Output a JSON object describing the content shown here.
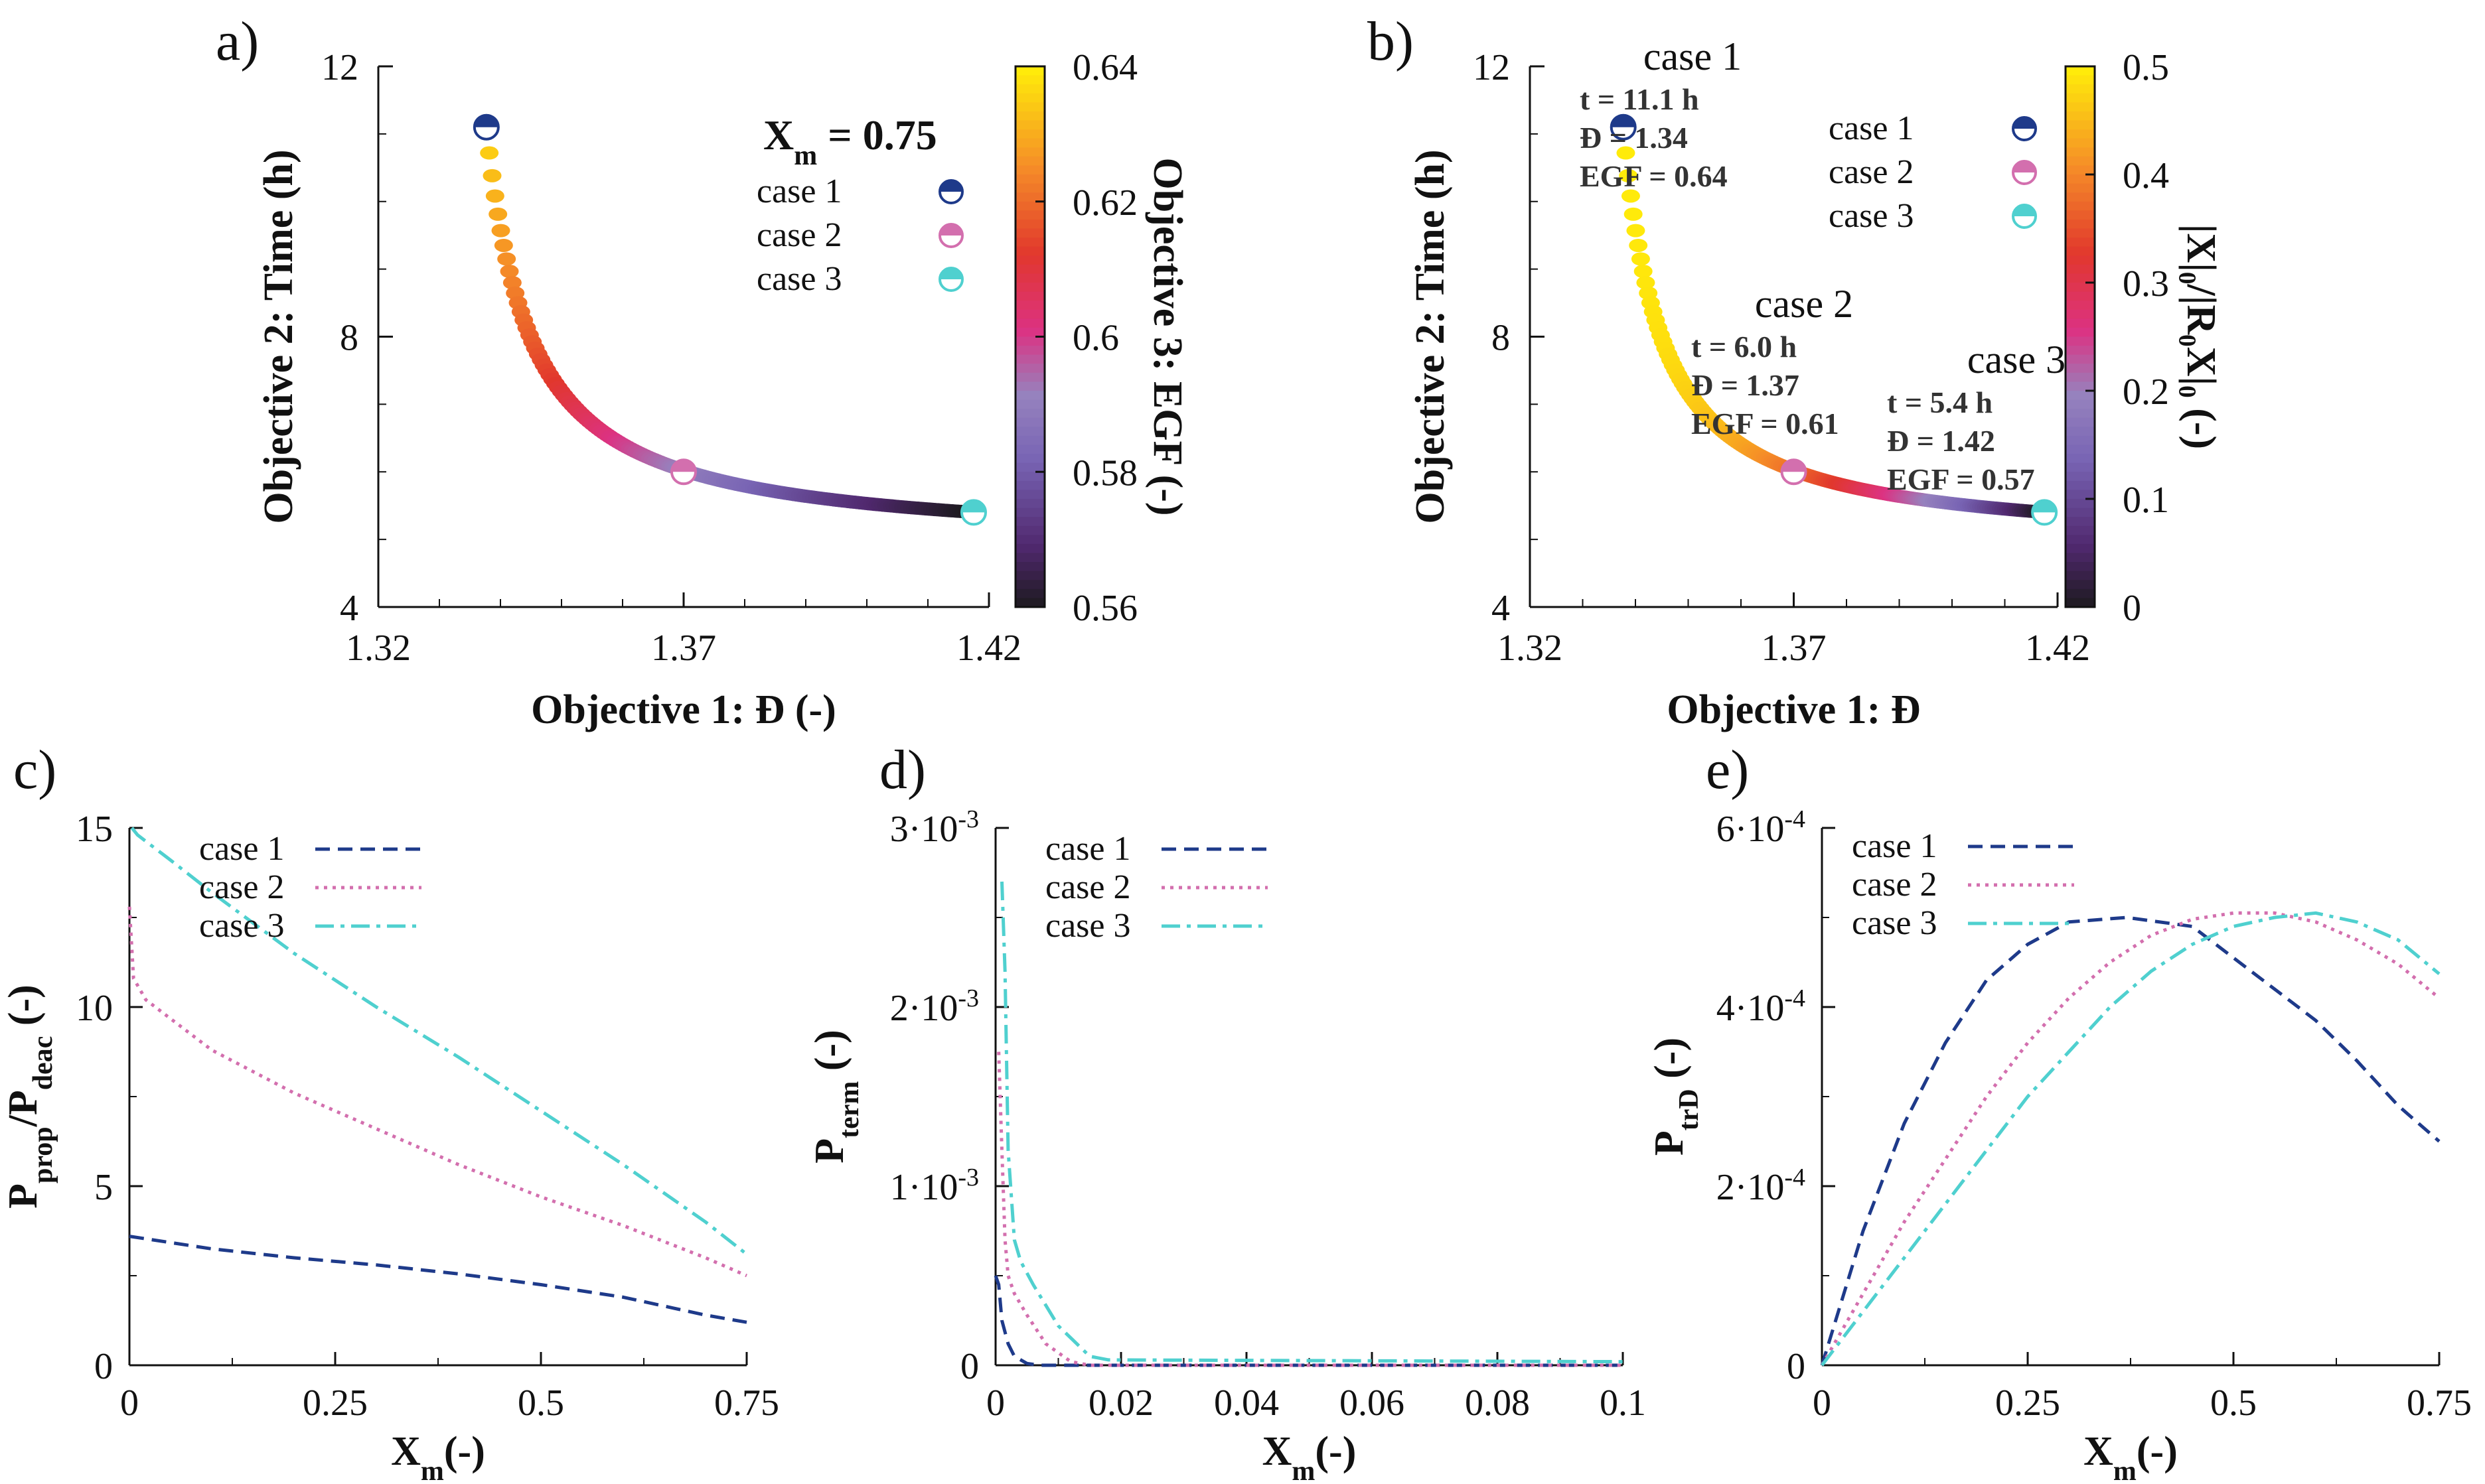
{
  "colors": {
    "case1": "#1e3a8a",
    "case2": "#d36fae",
    "case3": "#4fd0cf",
    "axis": "#111111",
    "annotation": "#333333"
  },
  "chart_data": [
    {
      "id": "a",
      "type": "scatter",
      "panel_label": "a)",
      "xlabel": "Objective 1: Đ (-)",
      "ylabel": "Objective 2: Time (h)",
      "xlim": [
        1.32,
        1.42
      ],
      "ylim": [
        4,
        12
      ],
      "xticks": [
        "1.32",
        "1.37",
        "1.42"
      ],
      "yticks": [
        "4",
        "8",
        "12"
      ],
      "legend_title": "X",
      "legend_title_sub": "m",
      "legend_title_value": " = 0.75",
      "legend": [
        "case 1",
        "case 2",
        "case 3"
      ],
      "colorbar": {
        "label": "Objective 3: EGF (-)",
        "range": [
          0.56,
          0.64
        ],
        "ticks": [
          "0.64",
          "0.62",
          "0.6",
          "0.58",
          "0.56"
        ]
      },
      "front": {
        "x_range": [
          1.3377,
          1.4178
        ],
        "y_range": [
          5.4,
          11.1
        ],
        "color_from": 0.64,
        "color_to": 0.56
      },
      "cases": [
        {
          "name": "case 1",
          "x": 1.3377,
          "y": 11.1
        },
        {
          "name": "case 2",
          "x": 1.37,
          "y": 6.0
        },
        {
          "name": "case 3",
          "x": 1.4175,
          "y": 5.4
        }
      ]
    },
    {
      "id": "b",
      "type": "scatter",
      "panel_label": "b)",
      "xlabel": "Objective 1: Đ",
      "ylabel": "Objective 2: Time (h)",
      "xlim": [
        1.32,
        1.42
      ],
      "ylim": [
        4,
        12
      ],
      "xticks": [
        "1.32",
        "1.37",
        "1.42"
      ],
      "yticks": [
        "4",
        "8",
        "12"
      ],
      "legend": [
        "case 1",
        "case 2",
        "case 3"
      ],
      "colorbar": {
        "label": "|X|₀/|R₀X|₀ (-)",
        "range": [
          0,
          0.5
        ],
        "ticks": [
          "0.5",
          "0.4",
          "0.3",
          "0.2",
          "0.1",
          "0"
        ]
      },
      "front": {
        "x_range": [
          1.3377,
          1.4178
        ],
        "y_range": [
          5.4,
          11.1
        ],
        "color_from": 0.5,
        "color_to": 0.0
      },
      "cases": [
        {
          "name": "case 1",
          "x": 1.3377,
          "y": 11.1
        },
        {
          "name": "case 2",
          "x": 1.37,
          "y": 6.0
        },
        {
          "name": "case 3",
          "x": 1.4175,
          "y": 5.4
        }
      ],
      "annotations": [
        {
          "title": "case 1",
          "lines": [
            "t = 11.1 h",
            "Đ = 1.34",
            "EGF = 0.64"
          ]
        },
        {
          "title": "case 2",
          "lines": [
            "t = 6.0 h",
            "Đ = 1.37",
            "EGF = 0.61"
          ]
        },
        {
          "title": "case 3",
          "lines": [
            "t = 5.4 h",
            "Đ = 1.42",
            "EGF = 0.57"
          ]
        }
      ]
    },
    {
      "id": "c",
      "type": "line",
      "panel_label": "c)",
      "xlabel": "X",
      "xlabel_sub": "m",
      "xlabel_tail": "(-)",
      "ylabel": "P",
      "ylabel_sub": "prop",
      "ylabel_mid": "/P",
      "ylabel_sub2": "deac",
      "ylabel_tail": " (-)",
      "xlim": [
        0,
        0.75
      ],
      "ylim": [
        0,
        15
      ],
      "xticks": [
        "0",
        "0.25",
        "0.5",
        "0.75"
      ],
      "yticks": [
        "0",
        "5",
        "10",
        "15"
      ],
      "legend": [
        "case 1",
        "case 2",
        "case 3"
      ],
      "series": [
        {
          "name": "case 1",
          "x": [
            0,
            0.1,
            0.2,
            0.3,
            0.4,
            0.5,
            0.6,
            0.7,
            0.75
          ],
          "values": [
            3.6,
            3.25,
            3.0,
            2.8,
            2.55,
            2.25,
            1.9,
            1.4,
            1.2
          ]
        },
        {
          "name": "case 2",
          "x": [
            0,
            0.005,
            0.02,
            0.1,
            0.2,
            0.3,
            0.4,
            0.5,
            0.6,
            0.7,
            0.75
          ],
          "values": [
            12.8,
            10.8,
            10.2,
            8.8,
            7.6,
            6.6,
            5.6,
            4.7,
            3.9,
            3.0,
            2.5
          ]
        },
        {
          "name": "case 3",
          "x": [
            0.003,
            0.01,
            0.05,
            0.1,
            0.2,
            0.3,
            0.4,
            0.5,
            0.6,
            0.7,
            0.75
          ],
          "values": [
            15.0,
            14.8,
            14.1,
            13.2,
            11.5,
            10.0,
            8.6,
            7.1,
            5.6,
            4.0,
            3.1
          ]
        }
      ]
    },
    {
      "id": "d",
      "type": "line",
      "panel_label": "d)",
      "xlabel": "X",
      "xlabel_sub": "m",
      "xlabel_tail": "(-)",
      "ylabel": "P",
      "ylabel_sub": "term",
      "ylabel_tail": " (-)",
      "xlim": [
        0,
        0.1
      ],
      "ylim": [
        0,
        0.003
      ],
      "xticks": [
        "0",
        "0.02",
        "0.04",
        "0.06",
        "0.08",
        "0.1"
      ],
      "yticks": [
        {
          "m": "0",
          "e": ""
        },
        {
          "m": "1·10",
          "e": "-3"
        },
        {
          "m": "2·10",
          "e": "-3"
        },
        {
          "m": "3·10",
          "e": "-3"
        }
      ],
      "legend": [
        "case 1",
        "case 2",
        "case 3"
      ],
      "series": [
        {
          "name": "case 1",
          "x": [
            0,
            0.0005,
            0.001,
            0.002,
            0.003,
            0.005,
            0.007,
            0.1
          ],
          "values": [
            0.0005,
            0.00045,
            0.00025,
            0.00012,
            5e-05,
            1e-05,
            0.0,
            0.0
          ]
        },
        {
          "name": "case 2",
          "x": [
            0.0005,
            0.001,
            0.0015,
            0.002,
            0.003,
            0.005,
            0.008,
            0.012,
            0.015,
            0.1
          ],
          "values": [
            0.00175,
            0.0012,
            0.0007,
            0.0005,
            0.0004,
            0.00028,
            0.00012,
            2e-05,
            0.0,
            0.0
          ]
        },
        {
          "name": "case 3",
          "x": [
            0.001,
            0.0015,
            0.002,
            0.003,
            0.004,
            0.006,
            0.01,
            0.015,
            0.018,
            0.1
          ],
          "values": [
            0.0027,
            0.0022,
            0.0012,
            0.0007,
            0.00058,
            0.00045,
            0.00022,
            5e-05,
            3e-05,
            2e-05
          ]
        }
      ]
    },
    {
      "id": "e",
      "type": "line",
      "panel_label": "e)",
      "xlabel": "X",
      "xlabel_sub": "m",
      "xlabel_tail": "(-)",
      "ylabel": "P",
      "ylabel_sub": "trD",
      "ylabel_tail": " (-)",
      "xlim": [
        0,
        0.75
      ],
      "ylim": [
        0,
        0.0006
      ],
      "xticks": [
        "0",
        "0.25",
        "0.5",
        "0.75"
      ],
      "yticks": [
        {
          "m": "0",
          "e": ""
        },
        {
          "m": "2·10",
          "e": "-4"
        },
        {
          "m": "4·10",
          "e": "-4"
        },
        {
          "m": "6·10",
          "e": "-4"
        }
      ],
      "legend": [
        "case 1",
        "case 2",
        "case 3"
      ],
      "series": [
        {
          "name": "case 1",
          "x": [
            0,
            0.05,
            0.1,
            0.15,
            0.2,
            0.25,
            0.3,
            0.37,
            0.45,
            0.5,
            0.55,
            0.6,
            0.65,
            0.7,
            0.75
          ],
          "values": [
            0.0,
            0.00015,
            0.00027,
            0.00036,
            0.00043,
            0.00047,
            0.000495,
            0.0005,
            0.00049,
            0.000455,
            0.00042,
            0.000385,
            0.00034,
            0.00029,
            0.00025
          ]
        },
        {
          "name": "case 2",
          "x": [
            0,
            0.05,
            0.1,
            0.15,
            0.2,
            0.25,
            0.3,
            0.35,
            0.4,
            0.45,
            0.5,
            0.55,
            0.6,
            0.65,
            0.7,
            0.75
          ],
          "values": [
            0.0,
            8e-05,
            0.00016,
            0.00023,
            0.0003,
            0.00036,
            0.00041,
            0.00045,
            0.00048,
            0.000498,
            0.000505,
            0.000505,
            0.000495,
            0.000475,
            0.000448,
            0.00041
          ]
        },
        {
          "name": "case 3",
          "x": [
            0,
            0.05,
            0.1,
            0.15,
            0.2,
            0.25,
            0.3,
            0.35,
            0.4,
            0.45,
            0.5,
            0.55,
            0.6,
            0.65,
            0.7,
            0.75
          ],
          "values": [
            0.0,
            6e-05,
            0.00012,
            0.00018,
            0.00024,
            0.0003,
            0.00035,
            0.0004,
            0.00044,
            0.00047,
            0.00049,
            0.0005,
            0.000505,
            0.000495,
            0.000475,
            0.000437
          ]
        }
      ]
    }
  ]
}
